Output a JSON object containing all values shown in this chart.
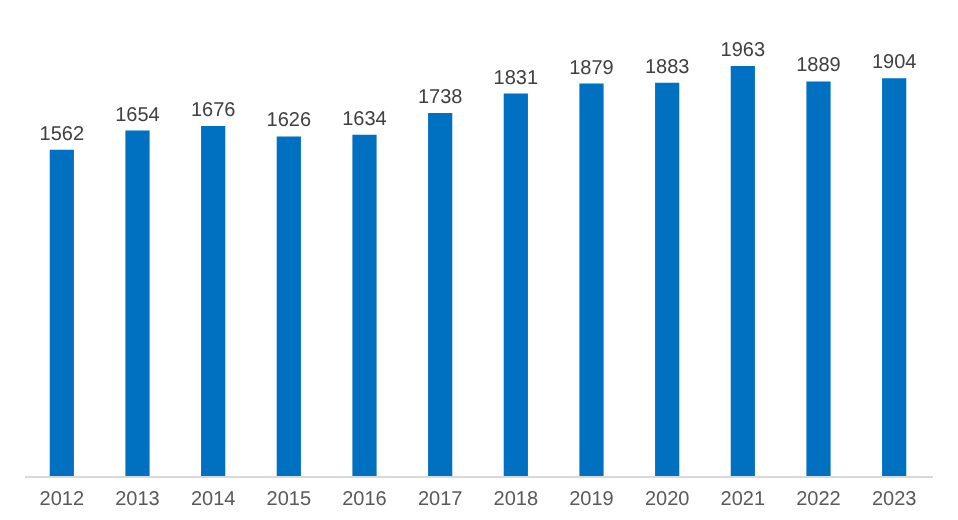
{
  "chart_data": {
    "type": "bar",
    "categories": [
      "2012",
      "2013",
      "2014",
      "2015",
      "2016",
      "2017",
      "2018",
      "2019",
      "2020",
      "2021",
      "2022",
      "2023"
    ],
    "values": [
      1562,
      1654,
      1676,
      1626,
      1634,
      1738,
      1831,
      1879,
      1883,
      1963,
      1889,
      1904
    ],
    "color": "#0070c0",
    "data_labels": true
  }
}
